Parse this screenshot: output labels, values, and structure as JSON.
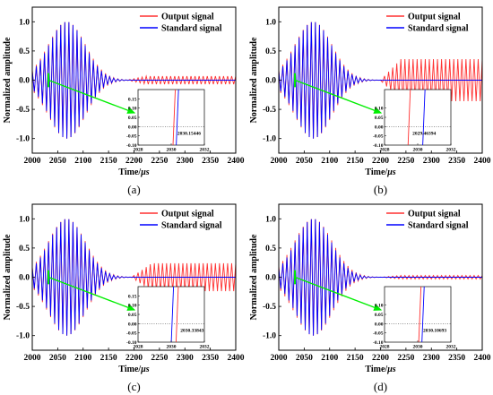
{
  "chart_data": [
    {
      "panel": "(a)",
      "type": "line",
      "xlabel_main": "Time/",
      "xlabel_unit": "μs",
      "ylabel": "Normalized amplitude",
      "xlim": [
        2000,
        2400
      ],
      "ylim": [
        -1.25,
        1.25
      ],
      "x_ticks": [
        "2000",
        "2050",
        "2100",
        "2150",
        "2200",
        "2250",
        "2300",
        "2350",
        "2400"
      ],
      "y_ticks": [
        "-1.0",
        "-0.5",
        "0.0",
        "0.5",
        "1.0"
      ],
      "legend": "top-right",
      "series": [
        {
          "name": "Output signal",
          "color": "#ff3030",
          "wave": {
            "peak_time": 2068,
            "sigma": 52,
            "tail_amplitude": 0.07,
            "tail_start": 2185,
            "periods_in_window": 50
          }
        },
        {
          "name": "Standard signal",
          "color": "#0000ff",
          "wave": {
            "peak_time": 2068,
            "sigma": 50,
            "tail_amplitude": 0,
            "tail_start": 2400,
            "periods_in_window": 50
          }
        }
      ],
      "inset": {
        "xlim": [
          2028,
          2032
        ],
        "ylim": [
          -0.1,
          0.2
        ],
        "x_ticks": [
          "2028",
          "2030",
          "2032"
        ],
        "y_ticks": [
          "-0.10",
          "-0.05",
          "0.00",
          "0.05",
          "0.10",
          "0.15"
        ],
        "annotation": "2030.15446",
        "crossing_output": 2030.15446,
        "crossing_standard": 2030.35
      }
    },
    {
      "panel": "(b)",
      "type": "line",
      "xlabel_main": "Time/",
      "xlabel_unit": "μs",
      "ylabel": "Normalized amplitude",
      "xlim": [
        2000,
        2400
      ],
      "ylim": [
        -1.25,
        1.25
      ],
      "x_ticks": [
        "2000",
        "2050",
        "2100",
        "2150",
        "2200",
        "2250",
        "2300",
        "2350",
        "2400"
      ],
      "y_ticks": [
        "-1.0",
        "-0.5",
        "0.0",
        "0.5",
        "1.0"
      ],
      "legend": "top-right",
      "series": [
        {
          "name": "Output signal",
          "color": "#ff3030",
          "wave": {
            "peak_time": 2068,
            "sigma": 52,
            "tail_amplitude": 0.36,
            "tail_start": 2200,
            "periods_in_window": 50
          }
        },
        {
          "name": "Standard signal",
          "color": "#0000ff",
          "wave": {
            "peak_time": 2068,
            "sigma": 50,
            "tail_amplitude": 0,
            "tail_start": 2400,
            "periods_in_window": 50
          }
        }
      ],
      "inset": {
        "xlim": [
          2028,
          2032
        ],
        "ylim": [
          -0.1,
          0.2
        ],
        "x_ticks": [
          "2028",
          "2030",
          "2032"
        ],
        "y_ticks": [
          "-0.10",
          "-0.05",
          "0.00",
          "0.05",
          "0.10"
        ],
        "annotation": "2029.46394",
        "crossing_output": 2029.46394,
        "crossing_standard": 2030.35
      }
    },
    {
      "panel": "(c)",
      "type": "line",
      "xlabel_main": "Time/",
      "xlabel_unit": "μs",
      "ylabel": "Normalized amplitude",
      "xlim": [
        2000,
        2400
      ],
      "ylim": [
        -1.25,
        1.25
      ],
      "x_ticks": [
        "2000",
        "2050",
        "2100",
        "2150",
        "2200",
        "2250",
        "2300",
        "2350",
        "2400"
      ],
      "y_ticks": [
        "-1.0",
        "-0.5",
        "0.0",
        "0.5",
        "1.0"
      ],
      "legend": "top-right",
      "series": [
        {
          "name": "Output signal",
          "color": "#ff3030",
          "wave": {
            "peak_time": 2068,
            "sigma": 52,
            "tail_amplitude": 0.24,
            "tail_start": 2195,
            "periods_in_window": 50
          }
        },
        {
          "name": "Standard signal",
          "color": "#0000ff",
          "wave": {
            "peak_time": 2068,
            "sigma": 50,
            "tail_amplitude": 0,
            "tail_start": 2400,
            "periods_in_window": 50
          }
        }
      ],
      "inset": {
        "xlim": [
          2028,
          2032
        ],
        "ylim": [
          -0.1,
          0.2
        ],
        "x_ticks": [
          "2028",
          "2030",
          "2032"
        ],
        "y_ticks": [
          "-0.10",
          "-0.05",
          "0.00",
          "0.05",
          "0.10",
          "0.15"
        ],
        "annotation": "2030.33843",
        "crossing_output": 2030.33843,
        "crossing_standard": 2030.05
      }
    },
    {
      "panel": "(d)",
      "type": "line",
      "xlabel_main": "Time/",
      "xlabel_unit": "μs",
      "ylabel": "Normalized amplitude",
      "xlim": [
        2000,
        2400
      ],
      "ylim": [
        -1.25,
        1.25
      ],
      "x_ticks": [
        "2000",
        "2050",
        "2100",
        "2150",
        "2200",
        "2250",
        "2300",
        "2350",
        "2400"
      ],
      "y_ticks": [
        "-1.0",
        "-0.5",
        "0.0",
        "0.5",
        "1.0"
      ],
      "legend": "top-right",
      "series": [
        {
          "name": "Output signal",
          "color": "#ff3030",
          "wave": {
            "peak_time": 2068,
            "sigma": 53,
            "tail_amplitude": 0.03,
            "tail_start": 2200,
            "periods_in_window": 50
          }
        },
        {
          "name": "Standard signal",
          "color": "#0000ff",
          "wave": {
            "peak_time": 2068,
            "sigma": 50,
            "tail_amplitude": 0,
            "tail_start": 2400,
            "periods_in_window": 50
          }
        }
      ],
      "inset": {
        "xlim": [
          2028,
          2032
        ],
        "ylim": [
          -0.1,
          0.2
        ],
        "x_ticks": [
          "2028",
          "2030",
          "2032"
        ],
        "y_ticks": [
          "-0.10",
          "-0.05",
          "0.00",
          "0.05",
          "0.10"
        ],
        "annotation": "2030.10693",
        "crossing_output": 2030.10693,
        "crossing_standard": 2030.3
      }
    }
  ]
}
